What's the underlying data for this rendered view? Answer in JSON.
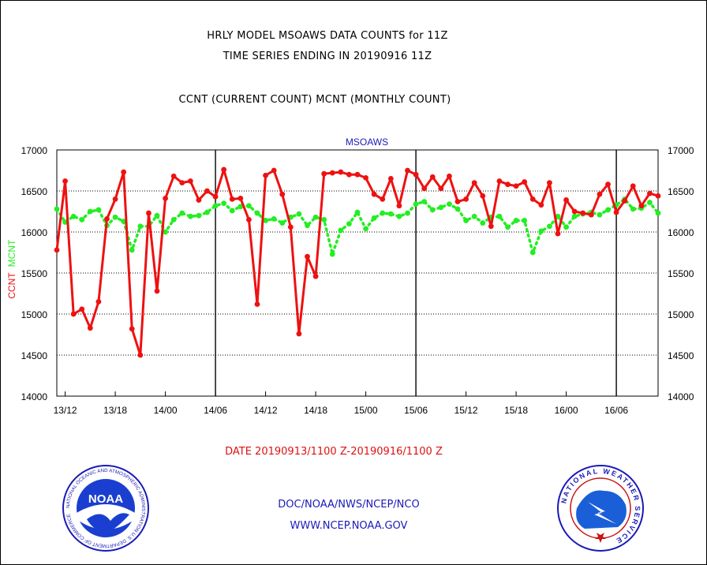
{
  "title": {
    "line1": "HRLY MODEL MSOAWS DATA COUNTS for 11Z",
    "line2": "TIME SERIES ENDING IN 20190916 11Z",
    "line3": "CCNT (CURRENT COUNT) MCNT (MONTHLY COUNT)"
  },
  "footer": {
    "date_range": "DATE 20190913/1100 Z-20190916/1100 Z",
    "org": "DOC/NOAA/NWS/NCEP/NCO",
    "url": "WWW.NCEP.NOAA.GOV"
  },
  "logos": {
    "noaa": {
      "label": "NOAA",
      "ring_text": "NATIONAL OCEANIC AND ATMOSPHERIC ADMINISTRATION U.S. DEPARTMENT OF COMMERCE"
    },
    "nws": {
      "ring_text": "NATIONAL WEATHER SERVICE"
    }
  },
  "colors": {
    "ccnt": "#ee1111",
    "mcnt": "#22ee22",
    "series_label": "#1a1ab8",
    "date_text": "#dd1111",
    "footer_text": "#1a1ab8"
  },
  "chart_data": {
    "type": "line",
    "series_label": "MSOAWS",
    "ylabel_ccnt": "CCNT",
    "ylabel_mcnt": "MCNT",
    "ylim": [
      14000,
      17000
    ],
    "yticks": [
      14000,
      14500,
      15000,
      15500,
      16000,
      16500,
      17000
    ],
    "xticks": [
      "13/12",
      "13/18",
      "14/00",
      "14/06",
      "14/12",
      "14/18",
      "15/00",
      "15/06",
      "15/12",
      "15/18",
      "16/00",
      "16/06"
    ],
    "day_boundaries": [
      "14/06",
      "15/06",
      "16/06"
    ],
    "x_start": "13/11",
    "x_end": "16/11",
    "hours": 72,
    "grid": true,
    "series": [
      {
        "name": "CCNT",
        "values": [
          15780,
          16620,
          15000,
          15060,
          14830,
          15150,
          16160,
          16400,
          16730,
          14820,
          14500,
          16230,
          15280,
          16410,
          16680,
          16600,
          16620,
          16390,
          16500,
          16430,
          16760,
          16400,
          16410,
          16150,
          15120,
          16690,
          16750,
          16460,
          16060,
          14760,
          15700,
          15460,
          16710,
          16720,
          16730,
          16700,
          16700,
          16660,
          16460,
          16400,
          16650,
          16320,
          16750,
          16700,
          16530,
          16670,
          16530,
          16680,
          16370,
          16400,
          16600,
          16440,
          16070,
          16620,
          16580,
          16560,
          16610,
          16400,
          16330,
          16600,
          15980,
          16390,
          16250,
          16230,
          16210,
          16460,
          16580,
          16240,
          16380,
          16560,
          16320,
          16470,
          16440
        ]
      },
      {
        "name": "MCNT",
        "values": [
          16280,
          16120,
          16190,
          16150,
          16250,
          16270,
          16080,
          16180,
          16130,
          15780,
          16070,
          16070,
          16200,
          16000,
          16150,
          16230,
          16190,
          16200,
          16240,
          16320,
          16350,
          16260,
          16310,
          16320,
          16230,
          16140,
          16160,
          16110,
          16180,
          16220,
          16080,
          16180,
          16150,
          15730,
          16020,
          16100,
          16240,
          16040,
          16170,
          16230,
          16220,
          16190,
          16230,
          16340,
          16370,
          16270,
          16300,
          16340,
          16280,
          16140,
          16190,
          16110,
          16180,
          16190,
          16060,
          16140,
          16140,
          15750,
          16010,
          16070,
          16190,
          16060,
          16190,
          16220,
          16240,
          16210,
          16270,
          16330,
          16400,
          16280,
          16290,
          16360,
          16230
        ]
      }
    ]
  }
}
